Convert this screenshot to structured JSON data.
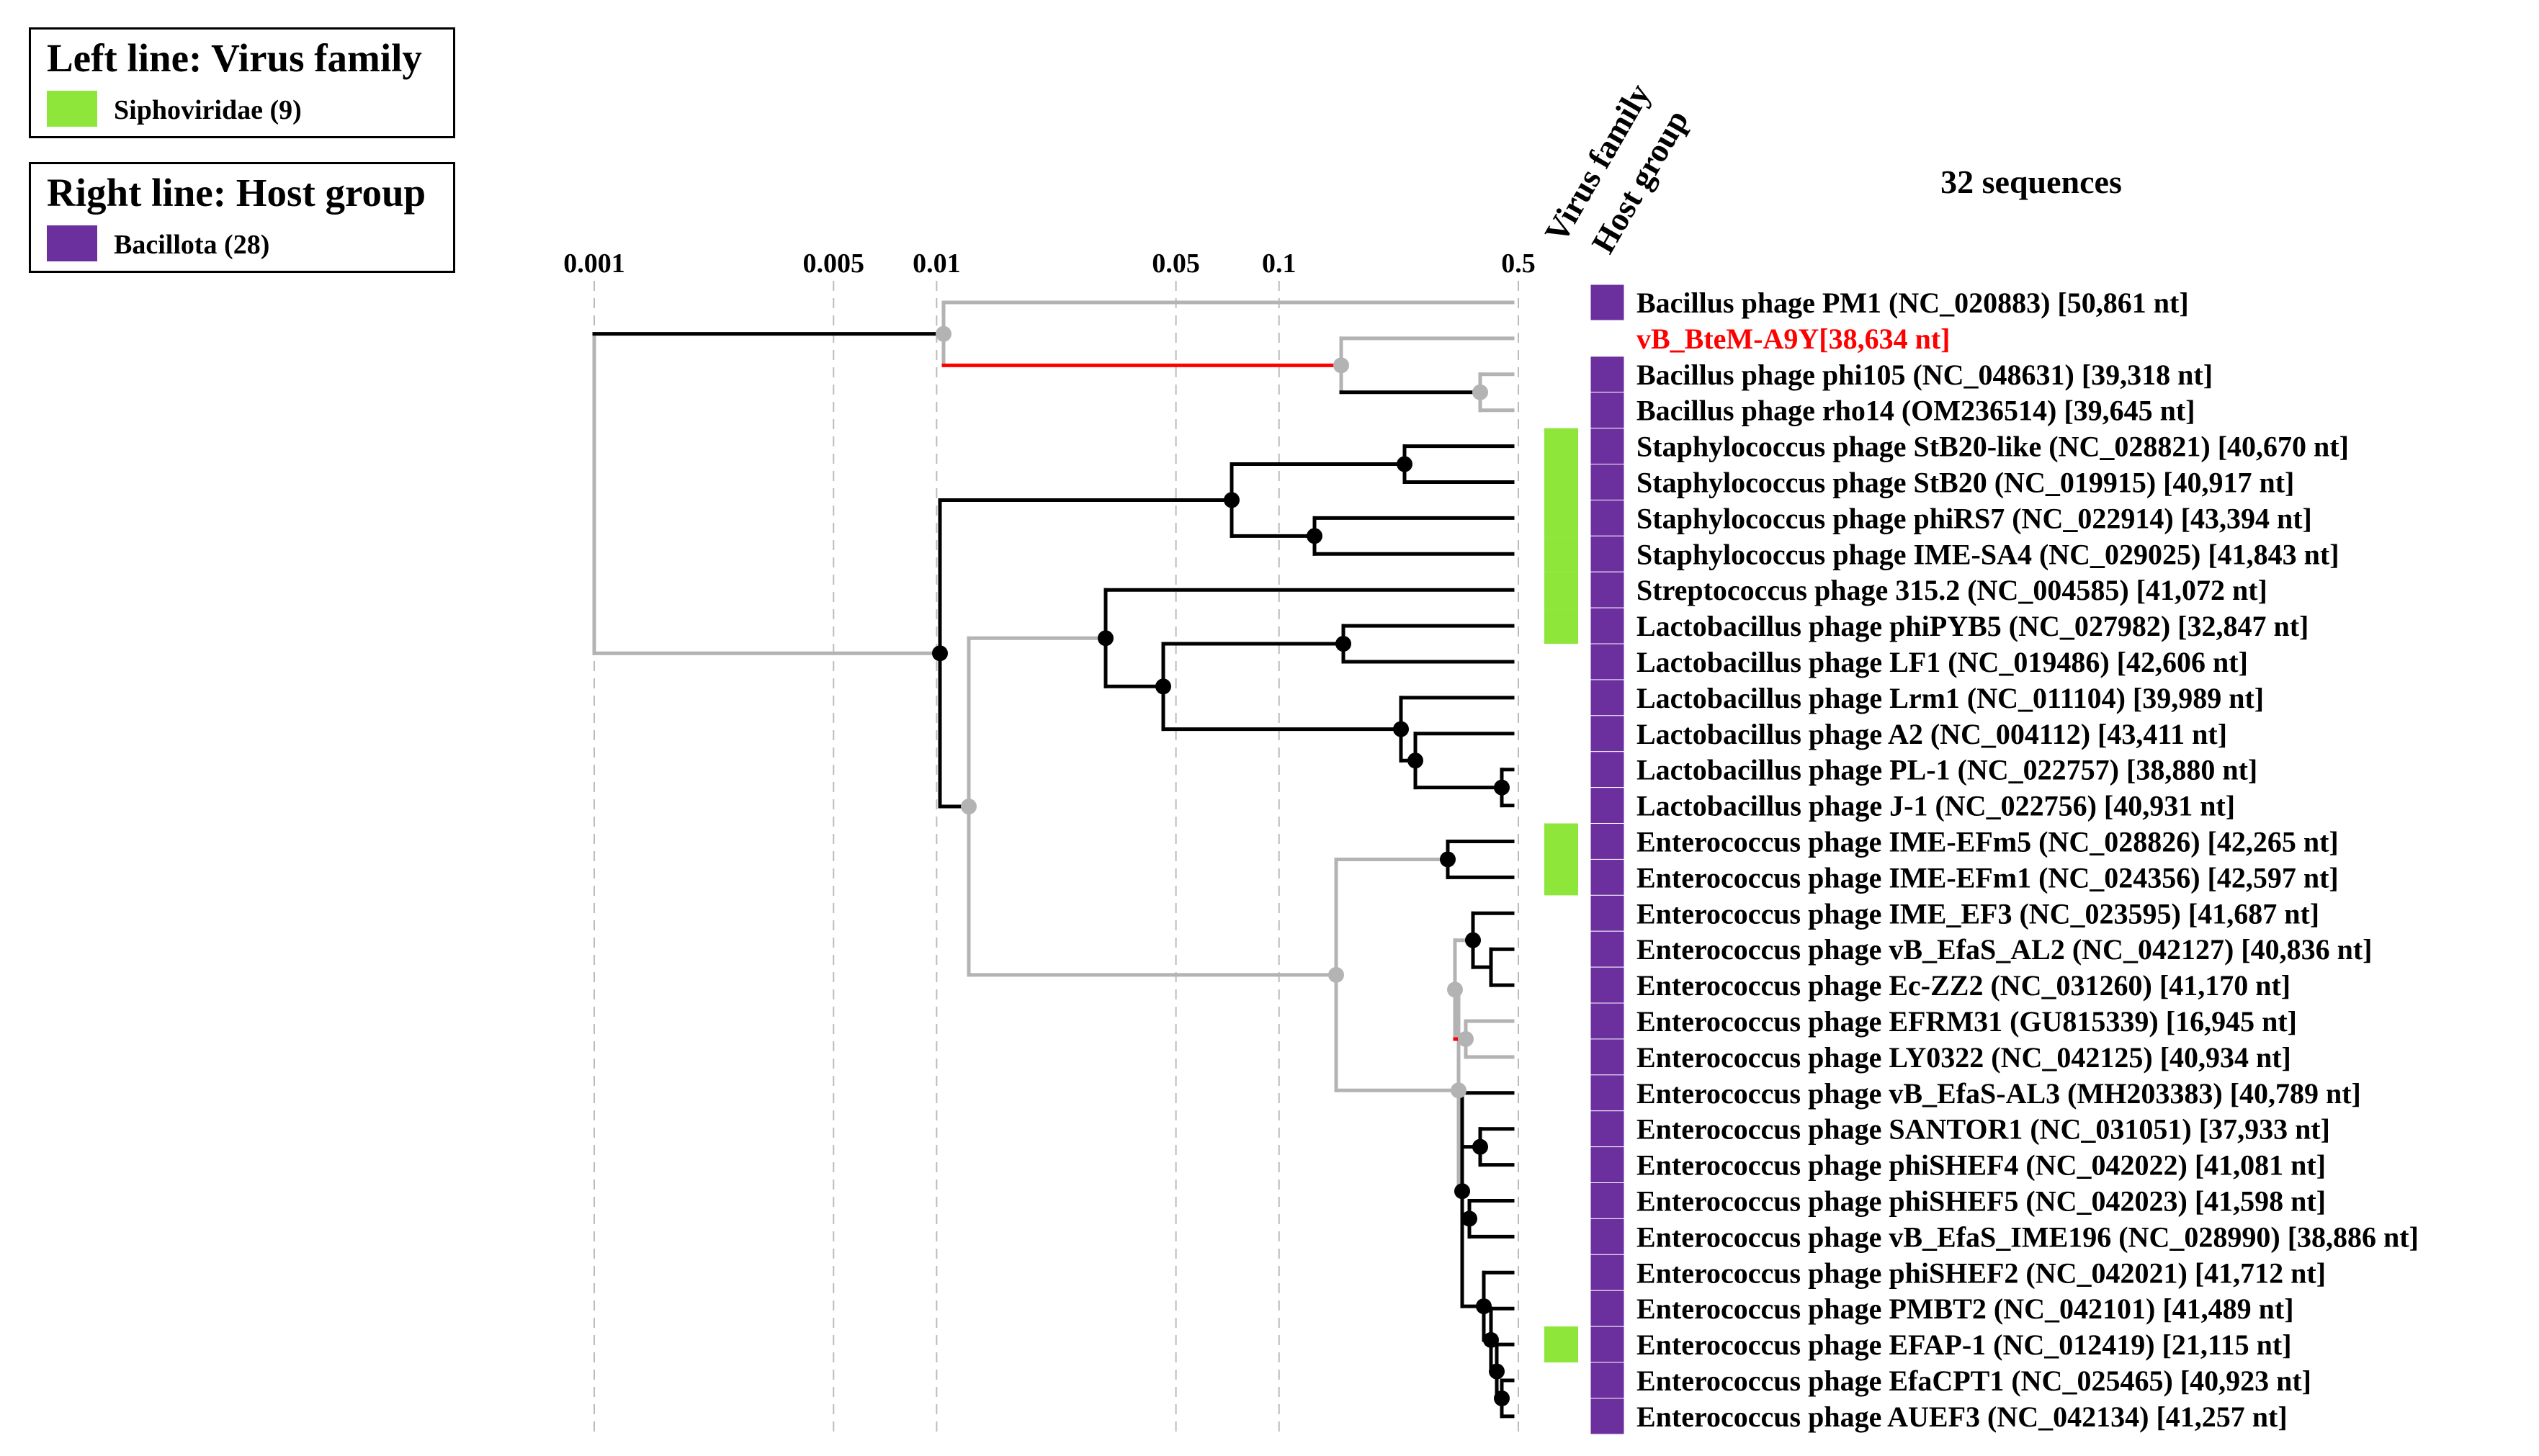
{
  "legend": {
    "virus_family": {
      "title": "Left line: Virus family",
      "label": "Siphoviridae (9)",
      "color": "#8ee63a"
    },
    "host_group": {
      "title": "Right line: Host group",
      "label": "Bacillota (28)",
      "color": "#6b2f9e"
    }
  },
  "header": {
    "sequences": "32 sequences",
    "col_virus_family": "Virus family",
    "col_host_group": "Host group"
  },
  "scale": {
    "ticks": [
      {
        "value": 0.001,
        "label": "0.001"
      },
      {
        "value": 0.005,
        "label": "0.005"
      },
      {
        "value": 0.01,
        "label": "0.01"
      },
      {
        "value": 0.05,
        "label": "0.05"
      },
      {
        "value": 0.1,
        "label": "0.1"
      },
      {
        "value": 0.5,
        "label": "0.5"
      }
    ]
  },
  "colors": {
    "black": "#000000",
    "gray": "#b3b3b3",
    "red": "#ff0000",
    "family": "#8ee63a",
    "host": "#6b2f9e"
  },
  "leaves": [
    {
      "label": "Bacillus phage PM1 (NC_020883) [50,861 nt]",
      "highlight": false,
      "siphoviridae": false
    },
    {
      "label": "vB_BteM-A9Y[38,634 nt]",
      "highlight": true,
      "siphoviridae": false
    },
    {
      "label": "Bacillus phage phi105 (NC_048631) [39,318 nt]",
      "highlight": false,
      "siphoviridae": false
    },
    {
      "label": "Bacillus phage rho14 (OM236514) [39,645 nt]",
      "highlight": false,
      "siphoviridae": false
    },
    {
      "label": "Staphylococcus phage StB20-like (NC_028821) [40,670 nt]",
      "highlight": false,
      "siphoviridae": true
    },
    {
      "label": "Staphylococcus phage StB20 (NC_019915) [40,917 nt]",
      "highlight": false,
      "siphoviridae": true
    },
    {
      "label": "Staphylococcus phage phiRS7 (NC_022914) [43,394 nt]",
      "highlight": false,
      "siphoviridae": true
    },
    {
      "label": "Staphylococcus phage IME-SA4 (NC_029025) [41,843 nt]",
      "highlight": false,
      "siphoviridae": true
    },
    {
      "label": "Streptococcus phage 315.2 (NC_004585) [41,072 nt]",
      "highlight": false,
      "siphoviridae": true
    },
    {
      "label": "Lactobacillus phage phiPYB5 (NC_027982) [32,847 nt]",
      "highlight": false,
      "siphoviridae": true
    },
    {
      "label": "Lactobacillus phage LF1 (NC_019486) [42,606 nt]",
      "highlight": false,
      "siphoviridae": false
    },
    {
      "label": "Lactobacillus phage Lrm1 (NC_011104) [39,989 nt]",
      "highlight": false,
      "siphoviridae": false
    },
    {
      "label": "Lactobacillus phage A2 (NC_004112) [43,411 nt]",
      "highlight": false,
      "siphoviridae": false
    },
    {
      "label": "Lactobacillus phage PL-1 (NC_022757) [38,880 nt]",
      "highlight": false,
      "siphoviridae": false
    },
    {
      "label": "Lactobacillus phage J-1 (NC_022756) [40,931 nt]",
      "highlight": false,
      "siphoviridae": false
    },
    {
      "label": "Enterococcus phage IME-EFm5 (NC_028826) [42,265 nt]",
      "highlight": false,
      "siphoviridae": true
    },
    {
      "label": "Enterococcus phage IME-EFm1 (NC_024356) [42,597 nt]",
      "highlight": false,
      "siphoviridae": true
    },
    {
      "label": "Enterococcus phage IME_EF3 (NC_023595) [41,687 nt]",
      "highlight": false,
      "siphoviridae": false
    },
    {
      "label": "Enterococcus phage vB_EfaS_AL2 (NC_042127) [40,836 nt]",
      "highlight": false,
      "siphoviridae": false
    },
    {
      "label": "Enterococcus phage Ec-ZZ2 (NC_031260) [41,170 nt]",
      "highlight": false,
      "siphoviridae": false
    },
    {
      "label": "Enterococcus phage EFRM31 (GU815339) [16,945 nt]",
      "highlight": false,
      "siphoviridae": false
    },
    {
      "label": "Enterococcus phage LY0322 (NC_042125) [40,934 nt]",
      "highlight": false,
      "siphoviridae": false
    },
    {
      "label": "Enterococcus phage vB_EfaS-AL3 (MH203383) [40,789 nt]",
      "highlight": false,
      "siphoviridae": false
    },
    {
      "label": "Enterococcus phage SANTOR1 (NC_031051) [37,933 nt]",
      "highlight": false,
      "siphoviridae": false
    },
    {
      "label": "Enterococcus phage phiSHEF4 (NC_042022) [41,081 nt]",
      "highlight": false,
      "siphoviridae": false
    },
    {
      "label": "Enterococcus phage phiSHEF5 (NC_042023) [41,598 nt]",
      "highlight": false,
      "siphoviridae": false
    },
    {
      "label": "Enterococcus phage vB_EfaS_IME196 (NC_028990) [38,886 nt]",
      "highlight": false,
      "siphoviridae": false
    },
    {
      "label": "Enterococcus phage phiSHEF2 (NC_042021) [41,712 nt]",
      "highlight": false,
      "siphoviridae": false
    },
    {
      "label": "Enterococcus phage PMBT2 (NC_042101) [41,489 nt]",
      "highlight": false,
      "siphoviridae": false
    },
    {
      "label": "Enterococcus phage EFAP-1 (NC_012419) [21,115 nt]",
      "highlight": false,
      "siphoviridae": true
    },
    {
      "label": "Enterococcus phage EfaCPT1 (NC_025465) [40,923 nt]",
      "highlight": false,
      "siphoviridae": false
    },
    {
      "label": "Enterococcus phage AUEF3 (NC_042134) [41,257 nt]",
      "highlight": false,
      "siphoviridae": false
    }
  ]
}
